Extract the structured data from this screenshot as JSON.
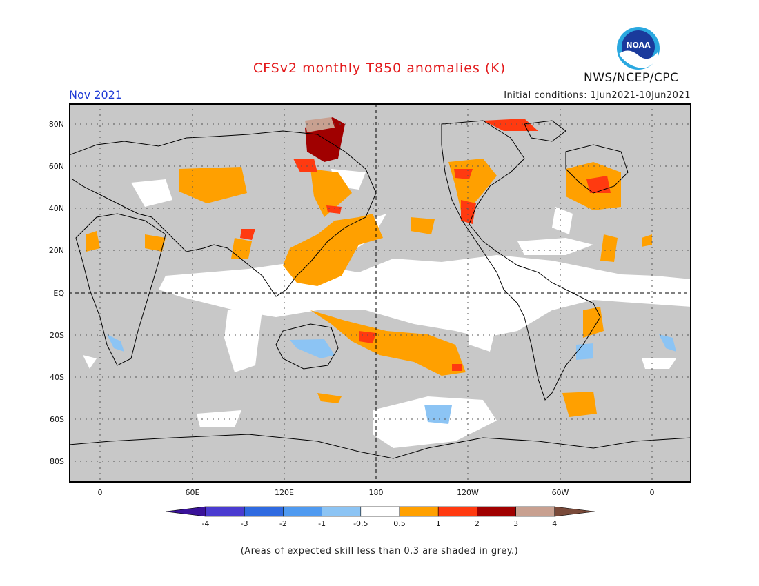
{
  "header": {
    "title": "CFSv2 monthly T850 anomalies (K)",
    "month": "Nov 2021",
    "initial_conditions": "Initial conditions: 1Jun2021-10Jun2021",
    "agency": "NWS/NCEP/CPC",
    "logo_text": "NOAA"
  },
  "map": {
    "lat_ticks": [
      "80N",
      "60N",
      "40N",
      "20N",
      "EQ",
      "20S",
      "40S",
      "60S",
      "80S"
    ],
    "lon_ticks": [
      "0",
      "60E",
      "120E",
      "180",
      "120W",
      "60W",
      "0"
    ],
    "background_color": "#c8c8c8"
  },
  "colorbar": {
    "labels": [
      "-4",
      "-3",
      "-2",
      "-1",
      "-0.5",
      "0.5",
      "1",
      "2",
      "3",
      "4"
    ],
    "colors": [
      "#3a129a",
      "#4a3bd0",
      "#2f6ae0",
      "#4f9af0",
      "#8cc4f4",
      "#ffffff",
      "#ffa000",
      "#ff3a10",
      "#a00000",
      "#c8a090",
      "#7a4a3a"
    ]
  },
  "note": "(Areas of expected skill less than 0.3 are shaded in grey.)"
}
